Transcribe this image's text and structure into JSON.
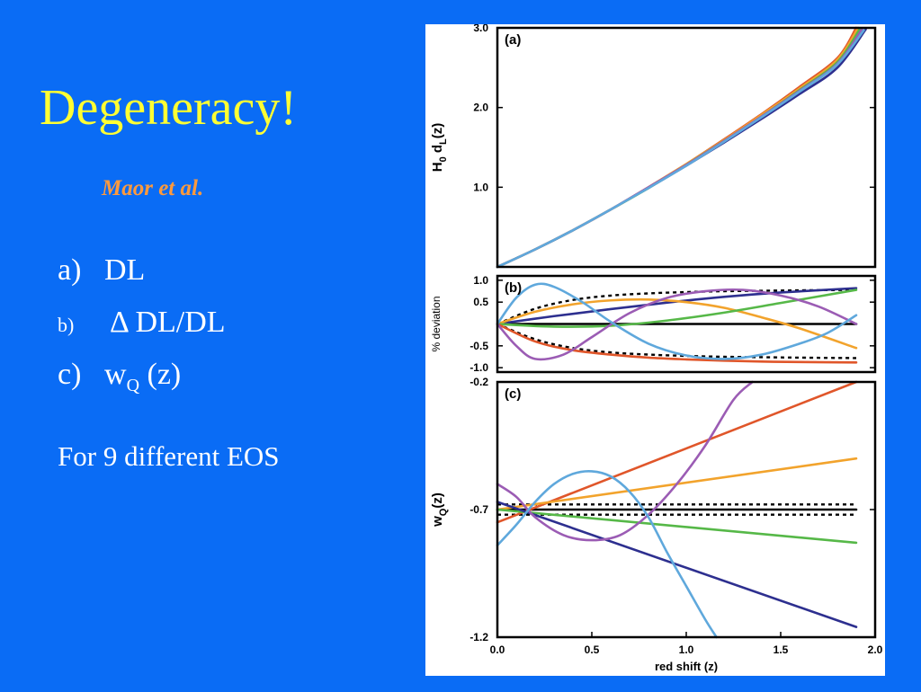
{
  "slide": {
    "title": "Degeneracy!",
    "author": "Maor et al.",
    "items": [
      {
        "marker": "a)",
        "text": "DL"
      },
      {
        "marker": "b)",
        "text": "Δ DL/DL"
      },
      {
        "marker": "c)",
        "text": "w",
        "sub": "Q",
        "after": " (z)"
      }
    ],
    "footer": "For 9 different EOS"
  },
  "colors": {
    "background": "#0a6cf5",
    "title": "#ffff33",
    "author": "#ff9a3c",
    "text": "#ffffff"
  },
  "chart_data": [
    {
      "type": "line",
      "panel_label": "(a)",
      "ylabel": "H0 dL(z)",
      "ylim": [
        0,
        3.0
      ],
      "xlim": [
        0,
        2.0
      ],
      "yticks": [
        {
          "v": 1.0,
          "label": "1.0"
        },
        {
          "v": 2.0,
          "label": "2.0"
        },
        {
          "v": 3.0,
          "label": "3.0"
        }
      ],
      "series": [
        {
          "color": "#2d2f8f",
          "x": [
            0,
            0.2,
            0.4,
            0.6,
            0.8,
            1.0,
            1.2,
            1.4,
            1.6,
            1.8,
            1.95
          ],
          "y": [
            0,
            0.22,
            0.46,
            0.72,
            0.99,
            1.27,
            1.56,
            1.86,
            2.17,
            2.5,
            2.98
          ]
        },
        {
          "color": "#e0562a",
          "x": [
            0,
            0.2,
            0.4,
            0.6,
            0.8,
            1.0,
            1.2,
            1.4,
            1.6,
            1.8,
            1.9
          ],
          "y": [
            0,
            0.22,
            0.46,
            0.72,
            1.0,
            1.29,
            1.6,
            1.92,
            2.26,
            2.62,
            3.0
          ]
        },
        {
          "color": "#f2a32c",
          "x": [
            0,
            0.2,
            0.4,
            0.6,
            0.8,
            1.0,
            1.2,
            1.4,
            1.6,
            1.8,
            1.91
          ],
          "y": [
            0,
            0.22,
            0.46,
            0.72,
            1.0,
            1.29,
            1.59,
            1.91,
            2.24,
            2.6,
            3.0
          ]
        },
        {
          "color": "#56b848",
          "x": [
            0,
            0.2,
            0.4,
            0.6,
            0.8,
            1.0,
            1.2,
            1.4,
            1.6,
            1.8,
            1.92
          ],
          "y": [
            0,
            0.22,
            0.46,
            0.72,
            0.99,
            1.28,
            1.58,
            1.89,
            2.22,
            2.57,
            2.99
          ]
        },
        {
          "color": "#9b5cb4",
          "x": [
            0,
            0.2,
            0.4,
            0.6,
            0.8,
            1.0,
            1.2,
            1.4,
            1.6,
            1.8,
            1.93
          ],
          "y": [
            0,
            0.22,
            0.46,
            0.72,
            1.0,
            1.28,
            1.58,
            1.89,
            2.21,
            2.55,
            2.98
          ]
        },
        {
          "color": "#5fa8dc",
          "x": [
            0,
            0.2,
            0.4,
            0.6,
            0.8,
            1.0,
            1.2,
            1.4,
            1.6,
            1.8,
            1.94
          ],
          "y": [
            0,
            0.22,
            0.46,
            0.72,
            0.99,
            1.27,
            1.57,
            1.88,
            2.2,
            2.54,
            2.97
          ]
        }
      ]
    },
    {
      "type": "line",
      "panel_label": "(b)",
      "ylabel": "% deviation",
      "ylim": [
        -1.1,
        1.1
      ],
      "xlim": [
        0,
        2.0
      ],
      "yticks": [
        {
          "v": 1.0,
          "label": "1.0"
        },
        {
          "v": 0.5,
          "label": "0.5"
        },
        {
          "v": -0.5,
          "label": "-0.5"
        },
        {
          "v": -1.0,
          "label": "-1.0"
        }
      ],
      "series": [
        {
          "color": "#000000",
          "dash": false,
          "x": [
            0,
            1.9
          ],
          "y": [
            0,
            0
          ]
        },
        {
          "color": "#000000",
          "dash": true,
          "x": [
            0,
            0.2,
            0.4,
            0.6,
            0.8,
            1.0,
            1.2,
            1.4,
            1.6,
            1.9
          ],
          "y": [
            0,
            0.35,
            0.55,
            0.65,
            0.7,
            0.73,
            0.75,
            0.76,
            0.77,
            0.78
          ]
        },
        {
          "color": "#000000",
          "dash": true,
          "x": [
            0,
            0.2,
            0.4,
            0.6,
            0.8,
            1.0,
            1.2,
            1.4,
            1.6,
            1.9
          ],
          "y": [
            0,
            -0.35,
            -0.55,
            -0.65,
            -0.7,
            -0.73,
            -0.75,
            -0.76,
            -0.77,
            -0.78
          ]
        },
        {
          "color": "#2d2f8f",
          "x": [
            0,
            0.3,
            0.6,
            0.9,
            1.2,
            1.5,
            1.9
          ],
          "y": [
            0,
            0.18,
            0.34,
            0.49,
            0.62,
            0.72,
            0.82
          ]
        },
        {
          "color": "#f2a32c",
          "x": [
            0,
            0.2,
            0.4,
            0.6,
            0.8,
            1.0,
            1.2,
            1.4,
            1.6,
            1.9
          ],
          "y": [
            0,
            0.28,
            0.45,
            0.54,
            0.56,
            0.5,
            0.37,
            0.15,
            -0.1,
            -0.55
          ]
        },
        {
          "color": "#56b848",
          "x": [
            0,
            0.3,
            0.6,
            0.9,
            1.2,
            1.5,
            1.9
          ],
          "y": [
            0,
            -0.06,
            -0.04,
            0.08,
            0.26,
            0.48,
            0.78
          ]
        },
        {
          "color": "#e0562a",
          "x": [
            0,
            0.2,
            0.4,
            0.6,
            0.8,
            1.0,
            1.2,
            1.4,
            1.6,
            1.9
          ],
          "y": [
            0,
            -0.4,
            -0.6,
            -0.7,
            -0.77,
            -0.81,
            -0.84,
            -0.86,
            -0.87,
            -0.88
          ]
        },
        {
          "color": "#9b5cb4",
          "x": [
            0,
            0.1,
            0.2,
            0.35,
            0.5,
            0.7,
            0.9,
            1.1,
            1.3,
            1.5,
            1.7,
            1.9
          ],
          "y": [
            0,
            -0.5,
            -0.8,
            -0.7,
            -0.3,
            0.25,
            0.6,
            0.75,
            0.78,
            0.65,
            0.4,
            0.0
          ]
        },
        {
          "color": "#5fa8dc",
          "x": [
            0,
            0.1,
            0.2,
            0.3,
            0.45,
            0.6,
            0.8,
            1.0,
            1.2,
            1.4,
            1.6,
            1.75,
            1.9
          ],
          "y": [
            0,
            0.6,
            0.9,
            0.85,
            0.5,
            0.05,
            -0.45,
            -0.72,
            -0.8,
            -0.7,
            -0.45,
            -0.2,
            0.2
          ]
        }
      ]
    },
    {
      "type": "line",
      "panel_label": "(c)",
      "ylabel": "wQ(z)",
      "xlabel": "red shift (z)",
      "ylim": [
        -1.2,
        -0.2
      ],
      "xlim": [
        0,
        2.0
      ],
      "xticks": [
        {
          "v": 0.0,
          "label": "0.0"
        },
        {
          "v": 0.5,
          "label": "0.5"
        },
        {
          "v": 1.0,
          "label": "1.0"
        },
        {
          "v": 1.5,
          "label": "1.5"
        },
        {
          "v": 2.0,
          "label": "2.0"
        }
      ],
      "yticks": [
        {
          "v": -0.2,
          "label": "-0.2"
        },
        {
          "v": -0.7,
          "label": "-0.7"
        },
        {
          "v": -1.2,
          "label": "-1.2"
        }
      ],
      "series": [
        {
          "color": "#000000",
          "dash": false,
          "x": [
            0,
            1.9
          ],
          "y": [
            -0.7,
            -0.7
          ]
        },
        {
          "color": "#000000",
          "dash": true,
          "x": [
            0,
            1.9
          ],
          "y": [
            -0.68,
            -0.68
          ]
        },
        {
          "color": "#000000",
          "dash": true,
          "x": [
            0,
            1.9
          ],
          "y": [
            -0.72,
            -0.72
          ]
        },
        {
          "color": "#e0562a",
          "x": [
            0,
            1.9
          ],
          "y": [
            -0.75,
            -0.2
          ]
        },
        {
          "color": "#f2a32c",
          "x": [
            0,
            1.9
          ],
          "y": [
            -0.7,
            -0.5
          ]
        },
        {
          "color": "#56b848",
          "x": [
            0,
            1.9
          ],
          "y": [
            -0.7,
            -0.83
          ]
        },
        {
          "color": "#2d2f8f",
          "x": [
            0,
            1.9
          ],
          "y": [
            -0.67,
            -1.16
          ]
        },
        {
          "color": "#9b5cb4",
          "x": [
            0,
            0.1,
            0.2,
            0.35,
            0.5,
            0.65,
            0.8,
            0.95,
            1.1,
            1.25,
            1.35
          ],
          "y": [
            -0.6,
            -0.65,
            -0.73,
            -0.8,
            -0.82,
            -0.8,
            -0.72,
            -0.6,
            -0.45,
            -0.27,
            -0.2
          ]
        },
        {
          "color": "#5fa8dc",
          "x": [
            0,
            0.1,
            0.2,
            0.3,
            0.4,
            0.5,
            0.6,
            0.7,
            0.8,
            0.9,
            1.0,
            1.1,
            1.16
          ],
          "y": [
            -0.84,
            -0.76,
            -0.67,
            -0.6,
            -0.56,
            -0.55,
            -0.57,
            -0.63,
            -0.73,
            -0.87,
            -1.0,
            -1.13,
            -1.2
          ]
        }
      ]
    }
  ]
}
